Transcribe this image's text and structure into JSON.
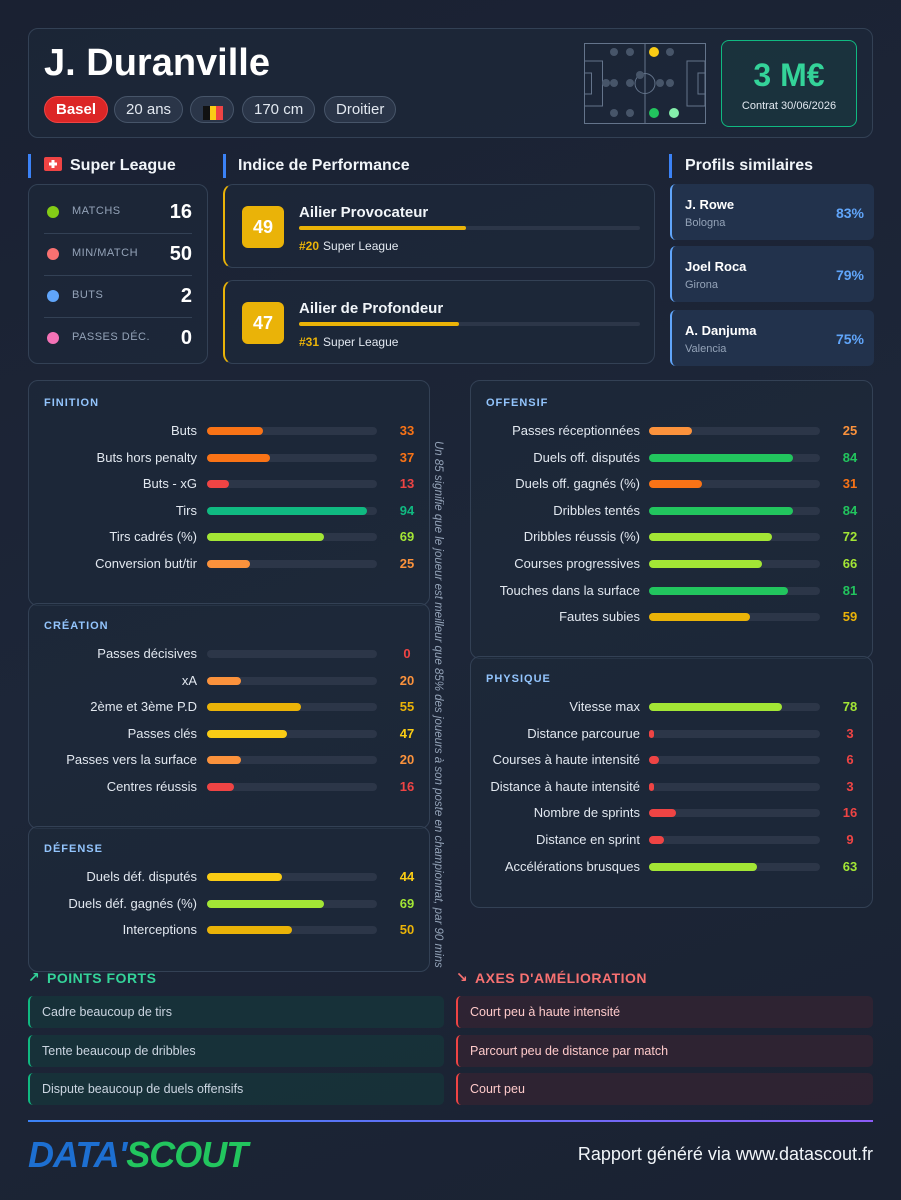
{
  "header": {
    "name": "J. Duranville",
    "club": "Basel",
    "age": "20 ans",
    "height": "170 cm",
    "foot": "Droitier",
    "value": "3 M€",
    "contract": "Contrat 30/06/2026"
  },
  "league": {
    "name": "Super League",
    "stats": [
      {
        "label": "MATCHS",
        "value": 16
      },
      {
        "label": "MIN/MATCH",
        "value": 50
      },
      {
        "label": "BUTS",
        "value": 2
      },
      {
        "label": "PASSES DÉC.",
        "value": 0
      }
    ]
  },
  "performance": {
    "title": "Indice de Performance",
    "roles": [
      {
        "score": 49,
        "name": "Ailier Provocateur",
        "rank": "#20",
        "league": "Super League"
      },
      {
        "score": 47,
        "name": "Ailier de Profondeur",
        "rank": "#31",
        "league": "Super League"
      }
    ]
  },
  "similar": {
    "title": "Profils similaires",
    "players": [
      {
        "name": "J. Rowe",
        "club": "Bologna",
        "value": "83%"
      },
      {
        "name": "Joel Roca",
        "club": "Girona",
        "value": "79%"
      },
      {
        "name": "A. Danjuma",
        "club": "Valencia",
        "value": "75%"
      }
    ]
  },
  "note": "Un 85 signifie que le joueur est meilleur que 85% des joueurs à son poste en championnat, par 90 mins",
  "sections": [
    {
      "title": "FINITION",
      "metrics": [
        {
          "label": "Buts",
          "value": 33
        },
        {
          "label": "Buts hors penalty",
          "value": 37
        },
        {
          "label": "Buts - xG",
          "value": 13
        },
        {
          "label": "Tirs",
          "value": 94
        },
        {
          "label": "Tirs cadrés (%)",
          "value": 69
        },
        {
          "label": "Conversion but/tir",
          "value": 25
        }
      ]
    },
    {
      "title": "CRÉATION",
      "metrics": [
        {
          "label": "Passes décisives",
          "value": 0
        },
        {
          "label": "xA",
          "value": 20
        },
        {
          "label": "2ème et 3ème P.D",
          "value": 55
        },
        {
          "label": "Passes clés",
          "value": 47
        },
        {
          "label": "Passes vers la surface",
          "value": 20
        },
        {
          "label": "Centres réussis",
          "value": 16
        }
      ]
    },
    {
      "title": "DÉFENSE",
      "metrics": [
        {
          "label": "Duels déf. disputés",
          "value": 44
        },
        {
          "label": "Duels déf. gagnés (%)",
          "value": 69
        },
        {
          "label": "Interceptions",
          "value": 50
        }
      ]
    },
    {
      "title": "OFFENSIF",
      "metrics": [
        {
          "label": "Passes réceptionnées",
          "value": 25
        },
        {
          "label": "Duels off. disputés",
          "value": 84
        },
        {
          "label": "Duels off. gagnés (%)",
          "value": 31
        },
        {
          "label": "Dribbles tentés",
          "value": 84
        },
        {
          "label": "Dribbles réussis (%)",
          "value": 72
        },
        {
          "label": "Courses progressives",
          "value": 66
        },
        {
          "label": "Touches dans la surface",
          "value": 81
        },
        {
          "label": "Fautes subies",
          "value": 59
        }
      ]
    },
    {
      "title": "PHYSIQUE",
      "metrics": [
        {
          "label": "Vitesse max",
          "value": 78
        },
        {
          "label": "Distance parcourue",
          "value": 3
        },
        {
          "label": "Courses à haute intensité",
          "value": 6
        },
        {
          "label": "Distance à haute intensité",
          "value": 3
        },
        {
          "label": "Nombre de sprints",
          "value": 16
        },
        {
          "label": "Distance en sprint",
          "value": 9
        },
        {
          "label": "Accélérations brusques",
          "value": 63
        }
      ]
    }
  ],
  "strengths": {
    "title": "POINTS FORTS",
    "items": [
      "Cadre beaucoup de tirs",
      "Tente beaucoup de dribbles",
      "Dispute beaucoup de duels offensifs"
    ]
  },
  "improvements": {
    "title": "AXES D'AMÉLIORATION",
    "items": [
      "Court peu à haute intensité",
      "Parcourt peu de distance par match",
      "Court peu"
    ]
  },
  "footer": {
    "logo_left": "DATA'",
    "logo_right": "SCOUT",
    "text": "Rapport généré via www.datascout.fr"
  }
}
